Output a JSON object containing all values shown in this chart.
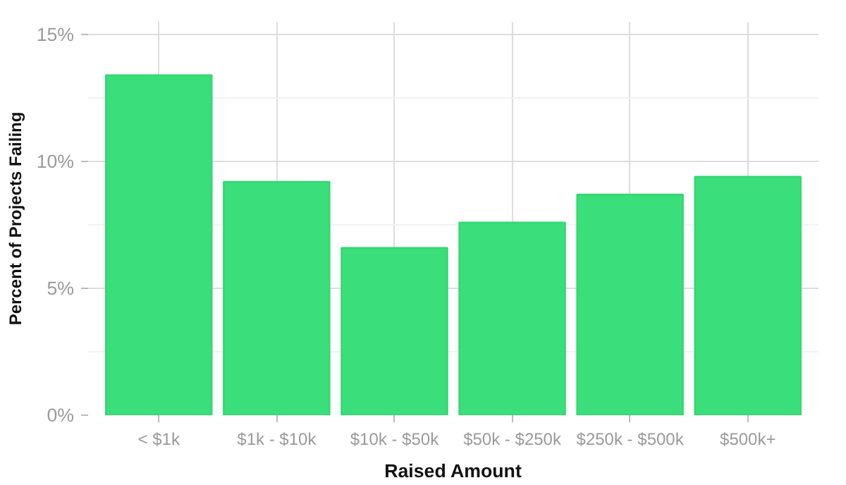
{
  "chart_data": {
    "type": "bar",
    "xlabel": "Raised Amount",
    "ylabel": "Percent of Projects Failing",
    "categories": [
      "< $1k",
      "$1k - $10k",
      "$10k - $50k",
      "$50k - $250k",
      "$250k - $500k",
      "$500k+"
    ],
    "values": [
      13.4,
      9.2,
      6.6,
      7.6,
      8.7,
      9.4
    ],
    "color": "#3ade7a",
    "ylim": [
      0,
      15.5
    ],
    "yticks": [
      {
        "value": 0,
        "label": "0%"
      },
      {
        "value": 5,
        "label": "5%"
      },
      {
        "value": 10,
        "label": "10%"
      },
      {
        "value": 15,
        "label": "15%"
      }
    ],
    "grid": true
  }
}
